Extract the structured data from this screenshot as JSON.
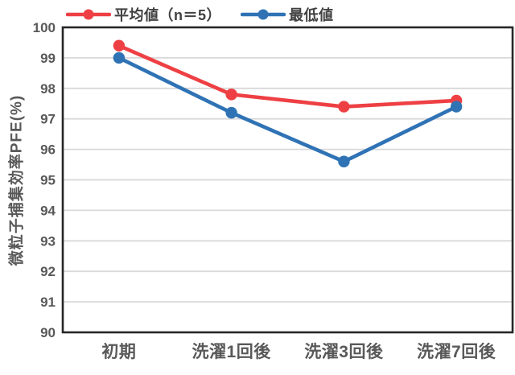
{
  "chart_data": {
    "type": "line",
    "categories": [
      "初期",
      "洗濯1回後",
      "洗濯3回後",
      "洗濯7回後"
    ],
    "series": [
      {
        "name": "平均値（n＝5）",
        "color": "#ee4044",
        "values": [
          99.4,
          97.8,
          97.4,
          97.6
        ]
      },
      {
        "name": "最低値",
        "color": "#2f73b5",
        "values": [
          99.0,
          97.2,
          95.6,
          97.4
        ]
      }
    ],
    "title": "",
    "xlabel": "",
    "ylabel": "微粒子捕集効率PFE(%)",
    "ylim": [
      90,
      100
    ],
    "ytick_step": 1,
    "grid": true,
    "legend_position": "top",
    "styles": {
      "gridline_color": "#d9d9d9",
      "axis_border_color": "#262626",
      "tick_label_color": "#595959",
      "background": "#ffffff"
    }
  }
}
